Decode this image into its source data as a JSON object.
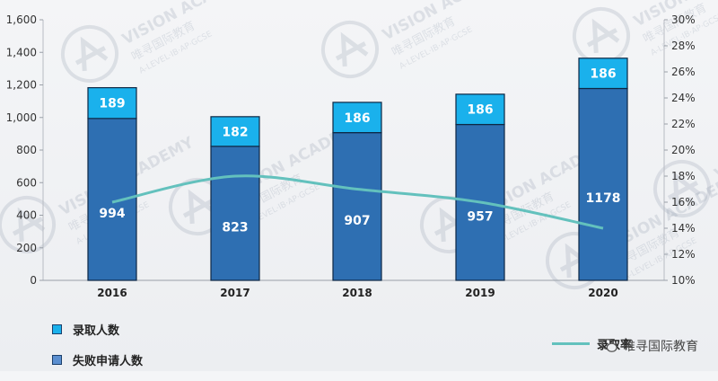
{
  "chart_data": {
    "type": "bar+line",
    "categories": [
      "2016",
      "2017",
      "2018",
      "2019",
      "2020"
    ],
    "series": [
      {
        "name": "失败申请人数",
        "type": "bar",
        "stack": "applicants",
        "values": [
          994,
          823,
          907,
          957,
          1178
        ],
        "color": "#2e6fb2"
      },
      {
        "name": "录取人数",
        "type": "bar",
        "stack": "applicants",
        "values": [
          189,
          182,
          186,
          186,
          186
        ],
        "color": "#1ab1ec"
      },
      {
        "name": "录取率",
        "type": "line",
        "axis": "right",
        "values": [
          16,
          18,
          17,
          16,
          14
        ],
        "color": "#63c1bd"
      }
    ],
    "y_left": {
      "min": 0,
      "max": 1600,
      "ticks": [
        "0",
        "200",
        "400",
        "600",
        "800",
        "1,000",
        "1,200",
        "1,400",
        "1,600"
      ]
    },
    "y_right": {
      "min": 10,
      "max": 30,
      "ticks": [
        "10%",
        "12%",
        "14%",
        "16%",
        "18%",
        "20%",
        "22%",
        "24%",
        "26%",
        "28%",
        "30%"
      ]
    },
    "grid": false,
    "legend": {
      "bar_items": [
        {
          "label": "录取人数",
          "color": "#1ab1ec"
        },
        {
          "label": "失败申请人数",
          "color": "#2e6fb2"
        }
      ],
      "line_item": {
        "label": "录取率",
        "color": "#63c1bd"
      }
    }
  },
  "watermark": {
    "text": "VISION ACADEMY",
    "subtext": "唯寻国际教育",
    "subline": "A-LEVEL·IB·AP·GCSE"
  },
  "brand": {
    "label": "唯寻国际教育",
    "icon": "wechat-icon"
  }
}
